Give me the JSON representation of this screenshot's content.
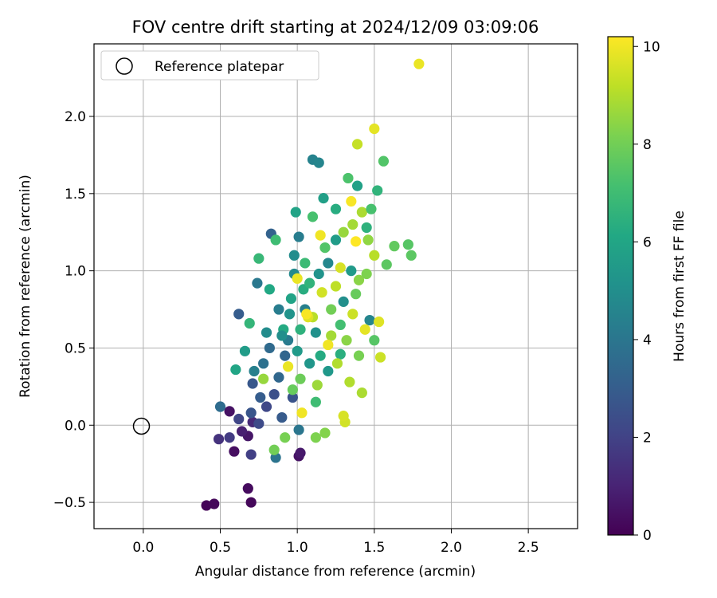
{
  "chart_data": {
    "type": "scatter",
    "title": "FOV centre drift starting at 2024/12/09 03:09:06",
    "xlabel": "Angular distance from reference (arcmin)",
    "ylabel": "Rotation from reference (arcmin)",
    "xlim": [
      -0.32,
      2.82
    ],
    "ylim": [
      -0.67,
      2.47
    ],
    "xticks": [
      0.0,
      0.5,
      1.0,
      1.5,
      2.0,
      2.5
    ],
    "xtick_labels": [
      "0.0",
      "0.5",
      "1.0",
      "1.5",
      "2.0",
      "2.5"
    ],
    "yticks": [
      -0.5,
      0.0,
      0.5,
      1.0,
      1.5,
      2.0
    ],
    "ytick_labels": [
      "−0.5",
      "0.0",
      "0.5",
      "1.0",
      "1.5",
      "2.0"
    ],
    "grid": true,
    "legend": {
      "position": "top-left",
      "entries": [
        "Reference platepar"
      ]
    },
    "reference_point": {
      "x": 0.0,
      "y": 0.0,
      "marker": "open-circle"
    },
    "colorbar": {
      "label": "Hours from first FF file",
      "range": [
        0,
        10.2
      ],
      "ticks": [
        0,
        2,
        4,
        6,
        8,
        10
      ],
      "tick_labels": [
        "0",
        "2",
        "4",
        "6",
        "8",
        "10"
      ],
      "colormap": "viridis"
    },
    "points": [
      {
        "x": 0.41,
        "y": -0.52,
        "c": 0.1
      },
      {
        "x": 0.46,
        "y": -0.51,
        "c": 0.2
      },
      {
        "x": 0.68,
        "y": -0.41,
        "c": 0.3
      },
      {
        "x": 0.7,
        "y": -0.5,
        "c": 0.2
      },
      {
        "x": 0.59,
        "y": -0.17,
        "c": 0.4
      },
      {
        "x": 0.56,
        "y": 0.09,
        "c": 0.5
      },
      {
        "x": 0.68,
        "y": -0.07,
        "c": 0.6
      },
      {
        "x": 1.01,
        "y": -0.2,
        "c": 0.5
      },
      {
        "x": 1.02,
        "y": -0.18,
        "c": 0.7
      },
      {
        "x": 0.64,
        "y": -0.04,
        "c": 0.9
      },
      {
        "x": 0.71,
        "y": 0.02,
        "c": 1.2
      },
      {
        "x": 0.49,
        "y": -0.09,
        "c": 1.5
      },
      {
        "x": 0.56,
        "y": -0.08,
        "c": 1.8
      },
      {
        "x": 0.7,
        "y": -0.19,
        "c": 1.9
      },
      {
        "x": 0.62,
        "y": 0.04,
        "c": 2.1
      },
      {
        "x": 0.75,
        "y": 0.01,
        "c": 2.3
      },
      {
        "x": 0.8,
        "y": 0.12,
        "c": 2.2
      },
      {
        "x": 0.85,
        "y": 0.2,
        "c": 2.5
      },
      {
        "x": 0.7,
        "y": 0.08,
        "c": 2.7
      },
      {
        "x": 0.9,
        "y": 0.05,
        "c": 2.9
      },
      {
        "x": 0.62,
        "y": 0.72,
        "c": 3.0
      },
      {
        "x": 0.83,
        "y": 1.24,
        "c": 3.2
      },
      {
        "x": 0.97,
        "y": 0.18,
        "c": 2.6
      },
      {
        "x": 0.88,
        "y": 0.31,
        "c": 3.4
      },
      {
        "x": 0.92,
        "y": 0.45,
        "c": 3.3
      },
      {
        "x": 0.5,
        "y": 0.12,
        "c": 3.6
      },
      {
        "x": 0.71,
        "y": 0.27,
        "c": 2.8
      },
      {
        "x": 0.78,
        "y": 0.4,
        "c": 3.8
      },
      {
        "x": 0.86,
        "y": -0.21,
        "c": 3.9
      },
      {
        "x": 1.01,
        "y": -0.03,
        "c": 4.0
      },
      {
        "x": 0.74,
        "y": 0.92,
        "c": 4.1
      },
      {
        "x": 1.1,
        "y": 1.72,
        "c": 4.5
      },
      {
        "x": 1.14,
        "y": 1.7,
        "c": 4.6
      },
      {
        "x": 1.01,
        "y": 1.22,
        "c": 4.3
      },
      {
        "x": 0.94,
        "y": 0.55,
        "c": 4.2
      },
      {
        "x": 1.05,
        "y": 0.75,
        "c": 4.4
      },
      {
        "x": 1.2,
        "y": 1.05,
        "c": 4.7
      },
      {
        "x": 0.98,
        "y": 0.98,
        "c": 4.8
      },
      {
        "x": 0.8,
        "y": 0.6,
        "c": 4.9
      },
      {
        "x": 1.47,
        "y": 0.68,
        "c": 4.6
      },
      {
        "x": 1.3,
        "y": 0.8,
        "c": 5.0
      },
      {
        "x": 1.12,
        "y": 0.6,
        "c": 5.1
      },
      {
        "x": 0.95,
        "y": 0.72,
        "c": 5.2
      },
      {
        "x": 1.08,
        "y": 0.4,
        "c": 5.3
      },
      {
        "x": 1.2,
        "y": 0.35,
        "c": 5.4
      },
      {
        "x": 1.35,
        "y": 1.0,
        "c": 5.5
      },
      {
        "x": 1.25,
        "y": 1.2,
        "c": 5.6
      },
      {
        "x": 1.17,
        "y": 1.47,
        "c": 5.7
      },
      {
        "x": 1.39,
        "y": 1.55,
        "c": 5.8
      },
      {
        "x": 0.99,
        "y": 1.38,
        "c": 5.9
      },
      {
        "x": 0.66,
        "y": 0.48,
        "c": 5.6
      },
      {
        "x": 0.6,
        "y": 0.36,
        "c": 6.0
      },
      {
        "x": 0.82,
        "y": 0.88,
        "c": 6.1
      },
      {
        "x": 0.91,
        "y": 0.62,
        "c": 6.2
      },
      {
        "x": 1.04,
        "y": 0.88,
        "c": 6.3
      },
      {
        "x": 1.28,
        "y": 0.46,
        "c": 6.4
      },
      {
        "x": 1.45,
        "y": 1.28,
        "c": 6.5
      },
      {
        "x": 1.52,
        "y": 1.52,
        "c": 6.6
      },
      {
        "x": 0.69,
        "y": 0.66,
        "c": 6.7
      },
      {
        "x": 0.75,
        "y": 1.08,
        "c": 6.8
      },
      {
        "x": 0.86,
        "y": 1.2,
        "c": 7.0
      },
      {
        "x": 1.1,
        "y": 1.35,
        "c": 7.2
      },
      {
        "x": 1.33,
        "y": 1.6,
        "c": 7.3
      },
      {
        "x": 1.56,
        "y": 1.71,
        "c": 7.4
      },
      {
        "x": 1.72,
        "y": 1.17,
        "c": 7.5
      },
      {
        "x": 1.74,
        "y": 1.1,
        "c": 7.6
      },
      {
        "x": 1.63,
        "y": 1.16,
        "c": 7.7
      },
      {
        "x": 1.58,
        "y": 1.04,
        "c": 7.6
      },
      {
        "x": 0.97,
        "y": 0.23,
        "c": 7.8
      },
      {
        "x": 1.02,
        "y": 0.3,
        "c": 7.9
      },
      {
        "x": 0.85,
        "y": -0.16,
        "c": 8.0
      },
      {
        "x": 0.92,
        "y": -0.08,
        "c": 8.1
      },
      {
        "x": 1.12,
        "y": -0.08,
        "c": 8.2
      },
      {
        "x": 1.18,
        "y": -0.05,
        "c": 8.3
      },
      {
        "x": 1.4,
        "y": 0.94,
        "c": 8.4
      },
      {
        "x": 1.46,
        "y": 1.2,
        "c": 8.5
      },
      {
        "x": 0.78,
        "y": 0.3,
        "c": 8.6
      },
      {
        "x": 1.13,
        "y": 0.26,
        "c": 8.7
      },
      {
        "x": 1.22,
        "y": 0.58,
        "c": 8.8
      },
      {
        "x": 1.42,
        "y": 0.21,
        "c": 8.9
      },
      {
        "x": 1.34,
        "y": 0.28,
        "c": 9.0
      },
      {
        "x": 1.1,
        "y": 0.7,
        "c": 9.1
      },
      {
        "x": 1.25,
        "y": 0.9,
        "c": 9.2
      },
      {
        "x": 1.39,
        "y": 1.82,
        "c": 9.3
      },
      {
        "x": 1.54,
        "y": 0.44,
        "c": 9.4
      },
      {
        "x": 1.31,
        "y": 0.02,
        "c": 9.5
      },
      {
        "x": 1.3,
        "y": 0.06,
        "c": 9.6
      },
      {
        "x": 1.07,
        "y": 0.7,
        "c": 9.7
      },
      {
        "x": 1.5,
        "y": 1.92,
        "c": 9.8
      },
      {
        "x": 1.79,
        "y": 2.34,
        "c": 9.9
      },
      {
        "x": 1.15,
        "y": 1.23,
        "c": 10.0
      },
      {
        "x": 1.35,
        "y": 1.45,
        "c": 10.1
      },
      {
        "x": 1.38,
        "y": 1.19,
        "c": 10.2
      },
      {
        "x": 1.0,
        "y": 0.95,
        "c": 9.9
      },
      {
        "x": 1.2,
        "y": 0.52,
        "c": 10.0
      },
      {
        "x": 1.44,
        "y": 0.62,
        "c": 9.8
      },
      {
        "x": 1.53,
        "y": 0.67,
        "c": 9.7
      },
      {
        "x": 0.94,
        "y": 0.38,
        "c": 9.9
      },
      {
        "x": 1.03,
        "y": 0.08,
        "c": 10.0
      },
      {
        "x": 1.28,
        "y": 1.02,
        "c": 9.6
      },
      {
        "x": 1.16,
        "y": 0.86,
        "c": 9.5
      },
      {
        "x": 1.06,
        "y": 0.72,
        "c": 10.1
      },
      {
        "x": 1.36,
        "y": 0.72,
        "c": 9.4
      },
      {
        "x": 0.9,
        "y": 0.58,
        "c": 5.0
      },
      {
        "x": 1.0,
        "y": 0.48,
        "c": 5.5
      },
      {
        "x": 1.15,
        "y": 0.45,
        "c": 6.2
      },
      {
        "x": 1.28,
        "y": 0.65,
        "c": 7.1
      },
      {
        "x": 1.38,
        "y": 0.85,
        "c": 7.8
      },
      {
        "x": 1.45,
        "y": 0.98,
        "c": 8.2
      },
      {
        "x": 1.05,
        "y": 1.05,
        "c": 6.9
      },
      {
        "x": 1.18,
        "y": 1.15,
        "c": 7.4
      },
      {
        "x": 1.3,
        "y": 1.25,
        "c": 8.6
      },
      {
        "x": 1.42,
        "y": 1.38,
        "c": 8.9
      },
      {
        "x": 1.5,
        "y": 1.1,
        "c": 9.1
      },
      {
        "x": 0.88,
        "y": 0.75,
        "c": 4.3
      },
      {
        "x": 0.96,
        "y": 0.82,
        "c": 5.9
      },
      {
        "x": 1.08,
        "y": 0.92,
        "c": 6.6
      },
      {
        "x": 1.22,
        "y": 0.75,
        "c": 8.0
      },
      {
        "x": 1.32,
        "y": 0.55,
        "c": 8.4
      },
      {
        "x": 1.26,
        "y": 0.4,
        "c": 9.0
      },
      {
        "x": 0.82,
        "y": 0.5,
        "c": 3.5
      },
      {
        "x": 0.76,
        "y": 0.18,
        "c": 3.0
      },
      {
        "x": 0.72,
        "y": 0.35,
        "c": 4.4
      },
      {
        "x": 1.12,
        "y": 0.15,
        "c": 7.0
      },
      {
        "x": 1.02,
        "y": 0.62,
        "c": 6.5
      },
      {
        "x": 1.25,
        "y": 1.4,
        "c": 6.3
      },
      {
        "x": 1.48,
        "y": 1.4,
        "c": 7.2
      },
      {
        "x": 1.36,
        "y": 1.3,
        "c": 8.8
      },
      {
        "x": 1.14,
        "y": 0.98,
        "c": 5.2
      },
      {
        "x": 0.98,
        "y": 1.1,
        "c": 4.9
      },
      {
        "x": 1.4,
        "y": 0.45,
        "c": 8.1
      },
      {
        "x": 1.5,
        "y": 0.55,
        "c": 7.5
      }
    ]
  }
}
